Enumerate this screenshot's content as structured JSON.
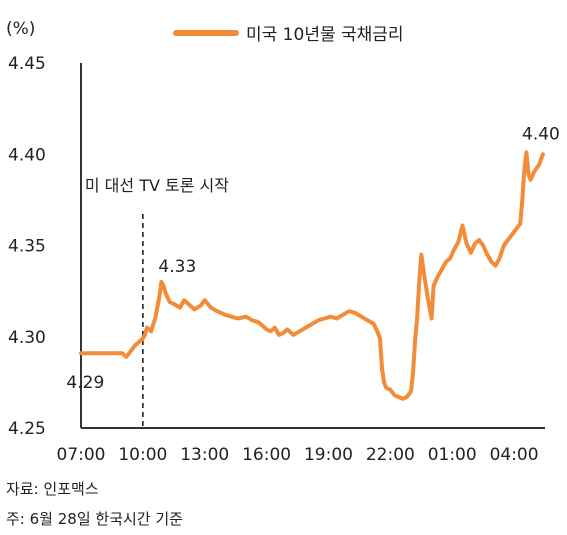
{
  "chart_data": {
    "type": "line",
    "unit_label": "(%)",
    "legend": {
      "label": "미국 10년물 국채금리",
      "position": "top",
      "color": "#F28C38"
    },
    "x_ticks": [
      "07:00",
      "10:00",
      "13:00",
      "16:00",
      "19:00",
      "22:00",
      "01:00",
      "04:00"
    ],
    "y_ticks": [
      "4.25",
      "4.30",
      "4.35",
      "4.40",
      "4.45"
    ],
    "ylim": [
      4.25,
      4.45
    ],
    "xlim": [
      7.0,
      29.5
    ],
    "series": [
      {
        "name": "미국 10년물 국채금리",
        "color": "#F28C38",
        "x": [
          7.0,
          9.0,
          9.1,
          9.2,
          9.4,
          9.6,
          9.8,
          10.0,
          10.1,
          10.2,
          10.4,
          10.6,
          10.8,
          10.9,
          11.0,
          11.1,
          11.3,
          11.5,
          11.8,
          12.0,
          12.2,
          12.5,
          12.8,
          13.0,
          13.3,
          13.6,
          14.0,
          14.3,
          14.6,
          15.0,
          15.3,
          15.6,
          15.8,
          16.0,
          16.2,
          16.4,
          16.6,
          16.8,
          17.0,
          17.3,
          17.6,
          17.9,
          18.2,
          18.5,
          18.8,
          19.1,
          19.4,
          19.7,
          20.0,
          20.3,
          20.6,
          20.9,
          21.2,
          21.4,
          21.5,
          21.6,
          21.7,
          21.8,
          22.0,
          22.2,
          22.4,
          22.6,
          22.8,
          23.0,
          23.1,
          23.2,
          23.3,
          23.4,
          23.5,
          23.6,
          23.8,
          24.0,
          24.1,
          24.3,
          24.5,
          24.7,
          24.9,
          25.1,
          25.3,
          25.5,
          25.7,
          25.9,
          26.1,
          26.3,
          26.5,
          26.7,
          26.9,
          27.1,
          27.3,
          27.5,
          27.7,
          27.9,
          28.1,
          28.3,
          28.4,
          28.5,
          28.6,
          28.7,
          28.8,
          29.0,
          29.2,
          29.4
        ],
        "values": [
          4.291,
          4.291,
          4.29,
          4.289,
          4.292,
          4.295,
          4.297,
          4.299,
          4.301,
          4.305,
          4.303,
          4.31,
          4.322,
          4.33,
          4.328,
          4.324,
          4.319,
          4.318,
          4.316,
          4.32,
          4.318,
          4.315,
          4.317,
          4.32,
          4.316,
          4.314,
          4.312,
          4.311,
          4.31,
          4.311,
          4.309,
          4.308,
          4.306,
          4.304,
          4.303,
          4.305,
          4.301,
          4.302,
          4.304,
          4.301,
          4.303,
          4.305,
          4.307,
          4.309,
          4.31,
          4.311,
          4.31,
          4.312,
          4.314,
          4.313,
          4.311,
          4.309,
          4.307,
          4.302,
          4.299,
          4.282,
          4.275,
          4.272,
          4.271,
          4.268,
          4.267,
          4.266,
          4.267,
          4.27,
          4.28,
          4.298,
          4.31,
          4.33,
          4.345,
          4.337,
          4.322,
          4.31,
          4.328,
          4.333,
          4.337,
          4.341,
          4.343,
          4.348,
          4.352,
          4.361,
          4.351,
          4.346,
          4.351,
          4.353,
          4.35,
          4.345,
          4.341,
          4.339,
          4.343,
          4.35,
          4.353,
          4.356,
          4.359,
          4.362,
          4.375,
          4.392,
          4.401,
          4.389,
          4.386,
          4.391,
          4.394,
          4.4
        ]
      }
    ],
    "annotations": [
      {
        "text": "미 대선 TV 토론 시작",
        "x": 10.0
      },
      {
        "text": "4.33",
        "x": 10.9,
        "y": 4.33
      },
      {
        "text": "4.29",
        "x": 9.3,
        "y": 4.29
      },
      {
        "text": "4.40",
        "x": 29.4,
        "y": 4.4
      }
    ],
    "grid": false
  },
  "notes": {
    "source": "자료: 인포맥스",
    "footnote": "주: 6월 28일 한국시간 기준"
  }
}
